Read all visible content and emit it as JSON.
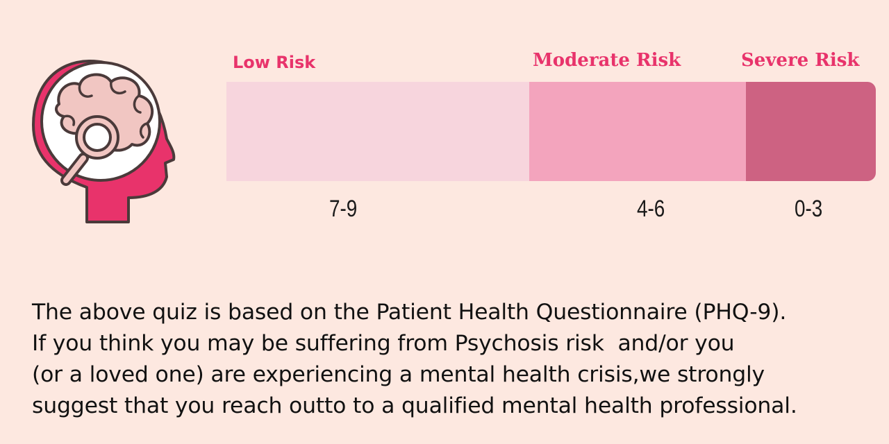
{
  "logo": {
    "icon": "brain-magnifier-head-icon",
    "colors": {
      "head": "#e8336b",
      "head_inner": "#ffffff",
      "brain": "#f1c6c2",
      "outline": "#4a3a3a"
    }
  },
  "risk_scale": {
    "segments": [
      {
        "label": "Low Risk",
        "range": "7-9",
        "color": "#f7d5dd",
        "fraction": 0.466
      },
      {
        "label": "Moderate Risk",
        "range": "4-6",
        "color": "#f3a4bd",
        "fraction": 0.334
      },
      {
        "label": "Severe Risk",
        "range": "0-3",
        "color": "#cd6282",
        "fraction": 0.2
      }
    ]
  },
  "disclaimer": {
    "lines": [
      "The above quiz is based on the Patient Health Questionnaire (PHQ-9).",
      "If you think you may be suffering from Psychosis risk  and/or you",
      "(or a loved one) are experiencing a mental health crisis,we strongly",
      "suggest that you reach outto to a qualified mental health professional."
    ]
  }
}
